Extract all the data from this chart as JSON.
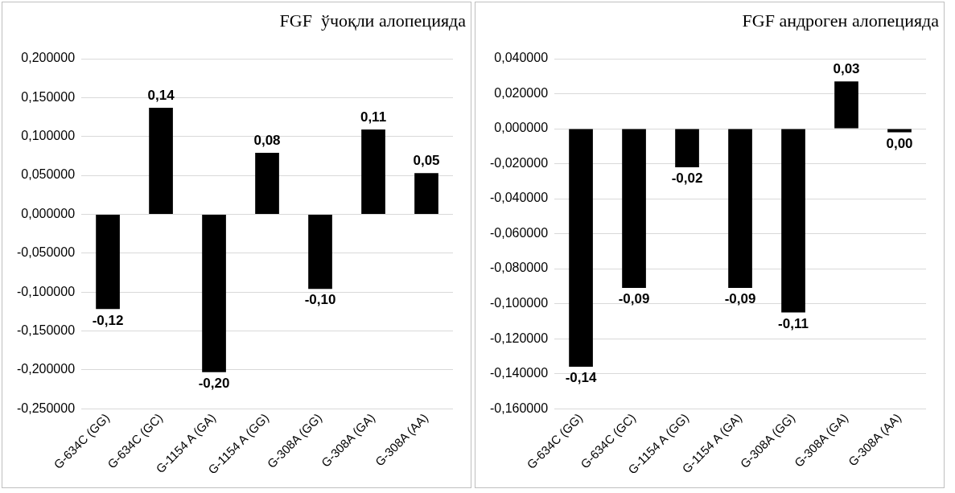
{
  "chart_data": [
    {
      "type": "bar",
      "title": "FGF  ўчоқли алопецияда",
      "categories": [
        "G-634C (GG)",
        "G-634C (GC)",
        "G-1154 A (GA)",
        "G-1154 A (GG)",
        "G-308A (GG)",
        "G-308A (GA)",
        "G-308A (AA)"
      ],
      "values": [
        -0.122,
        0.137,
        -0.203,
        0.079,
        -0.096,
        0.109,
        0.053
      ],
      "value_labels": [
        "-0,12",
        "0,14",
        "-0,20",
        "0,08",
        "-0,10",
        "0,11",
        "0,05"
      ],
      "color": "#000000",
      "ylim": [
        -0.25,
        0.2
      ],
      "yticks": [
        {
          "value": -0.25,
          "label": "-0,250000"
        },
        {
          "value": -0.2,
          "label": "-0,200000"
        },
        {
          "value": -0.15,
          "label": "-0,150000"
        },
        {
          "value": -0.1,
          "label": "-0,100000"
        },
        {
          "value": -0.05,
          "label": "-0,050000"
        },
        {
          "value": 0,
          "label": "0,000000"
        },
        {
          "value": 0.05,
          "label": "0,050000"
        },
        {
          "value": 0.1,
          "label": "0,100000"
        },
        {
          "value": 0.15,
          "label": "0,150000"
        },
        {
          "value": 0.2,
          "label": "0,200000"
        }
      ],
      "grid": "y"
    },
    {
      "type": "bar",
      "title": "FGF андроген алопецияда",
      "categories": [
        "G-634C (GG)",
        "G-634C (GC)",
        "G-1154 A (GG)",
        "G-1154 A (GA)",
        "G-308A (GG)",
        "G-308A (GA)",
        "G-308A (AA)"
      ],
      "values": [
        -0.136,
        -0.091,
        -0.022,
        -0.091,
        -0.105,
        0.027,
        -0.002
      ],
      "value_labels": [
        "-0,14",
        "-0,09",
        "-0,02",
        "-0,09",
        "-0,11",
        "0,03",
        "0,00"
      ],
      "color": "#000000",
      "ylim": [
        -0.16,
        0.04
      ],
      "yticks": [
        {
          "value": -0.16,
          "label": "-0,160000"
        },
        {
          "value": -0.14,
          "label": "-0,140000"
        },
        {
          "value": -0.12,
          "label": "-0,120000"
        },
        {
          "value": -0.1,
          "label": "-0,100000"
        },
        {
          "value": -0.08,
          "label": "-0,080000"
        },
        {
          "value": -0.06,
          "label": "-0,060000"
        },
        {
          "value": -0.04,
          "label": "-0,040000"
        },
        {
          "value": -0.02,
          "label": "-0,020000"
        },
        {
          "value": 0,
          "label": "0,000000"
        },
        {
          "value": 0.02,
          "label": "0,020000"
        },
        {
          "value": 0.04,
          "label": "0,040000"
        }
      ],
      "grid": "y"
    }
  ]
}
